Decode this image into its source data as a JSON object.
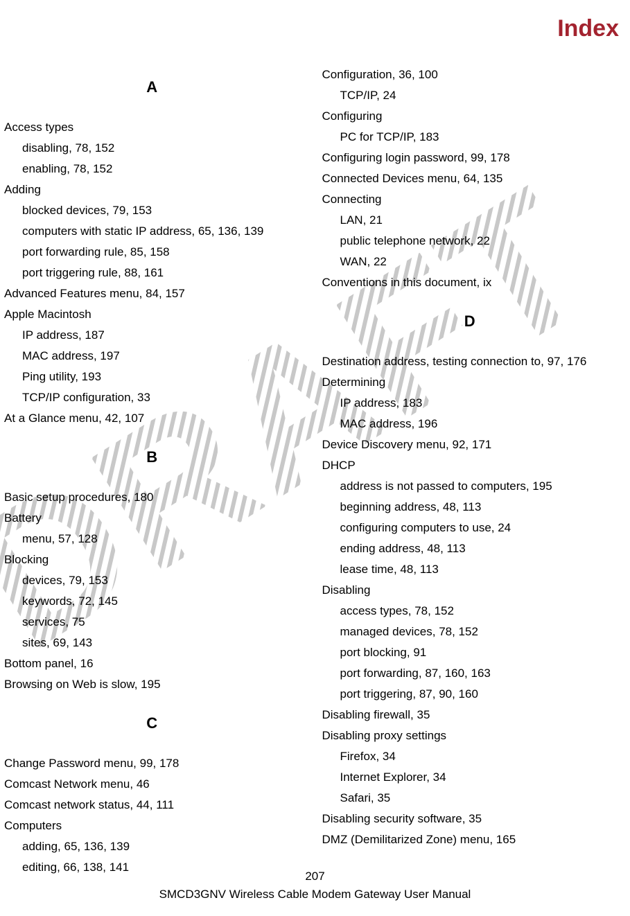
{
  "colors": {
    "title": "#a3232f",
    "text": "#000000",
    "background": "#ffffff",
    "watermark_fill": "#d0d0d0",
    "watermark_pattern_bg": "#ffffff"
  },
  "fonts": {
    "body_family": "Arial, Helvetica, sans-serif",
    "body_size_pt": 13,
    "title_size_pt": 26,
    "section_head_size_pt": 17,
    "section_head_weight": "900"
  },
  "watermark_text": "DRAFT",
  "page_title": "Index",
  "footer": {
    "page_number": "207",
    "manual_title": "SMCD3GNV Wireless Cable Modem Gateway User Manual"
  },
  "left_column": [
    {
      "type": "head",
      "text": "A"
    },
    {
      "type": "entry",
      "text": "Access types"
    },
    {
      "type": "sub",
      "text": "disabling, 78, 152"
    },
    {
      "type": "sub",
      "text": "enabling, 78, 152"
    },
    {
      "type": "entry",
      "text": "Adding"
    },
    {
      "type": "sub",
      "text": "blocked devices, 79, 153"
    },
    {
      "type": "sub",
      "text": "computers with static IP address, 65, 136, 139"
    },
    {
      "type": "sub",
      "text": "port forwarding rule, 85, 158"
    },
    {
      "type": "sub",
      "text": "port triggering rule, 88, 161"
    },
    {
      "type": "entry",
      "text": "Advanced Features menu, 84, 157"
    },
    {
      "type": "entry",
      "text": "Apple Macintosh"
    },
    {
      "type": "sub",
      "text": "IP address, 187"
    },
    {
      "type": "sub",
      "text": "MAC address, 197"
    },
    {
      "type": "sub",
      "text": "Ping utility, 193"
    },
    {
      "type": "sub",
      "text": "TCP/IP configuration, 33"
    },
    {
      "type": "entry",
      "text": "At a Glance menu, 42, 107"
    },
    {
      "type": "head",
      "text": "B"
    },
    {
      "type": "entry",
      "text": "Basic setup procedures, 180"
    },
    {
      "type": "entry",
      "text": "Battery"
    },
    {
      "type": "sub",
      "text": "menu, 57, 128"
    },
    {
      "type": "entry",
      "text": "Blocking"
    },
    {
      "type": "sub",
      "text": "devices, 79, 153"
    },
    {
      "type": "sub",
      "text": "keywords, 72, 145"
    },
    {
      "type": "sub",
      "text": "services, 75"
    },
    {
      "type": "sub",
      "text": "sites, 69, 143"
    },
    {
      "type": "entry",
      "text": "Bottom panel, 16"
    },
    {
      "type": "entry",
      "text": "Browsing on Web is slow, 195"
    },
    {
      "type": "head",
      "text": "C"
    },
    {
      "type": "entry",
      "text": "Change Password menu, 99, 178"
    },
    {
      "type": "entry",
      "text": "Comcast Network menu, 46"
    },
    {
      "type": "entry",
      "text": "Comcast network status, 44, 111"
    },
    {
      "type": "entry",
      "text": "Computers"
    },
    {
      "type": "sub",
      "text": "adding, 65, 136, 139"
    },
    {
      "type": "sub",
      "text": "editing, 66, 138, 141"
    }
  ],
  "right_column": [
    {
      "type": "entry",
      "text": "Configuration, 36, 100",
      "leading_space": true
    },
    {
      "type": "sub",
      "text": "TCP/IP, 24"
    },
    {
      "type": "entry",
      "text": "Configuring"
    },
    {
      "type": "sub",
      "text": "PC for TCP/IP, 183"
    },
    {
      "type": "entry",
      "text": "Configuring login password, 99, 178"
    },
    {
      "type": "entry",
      "text": "Connected Devices menu, 64, 135"
    },
    {
      "type": "entry",
      "text": "Connecting"
    },
    {
      "type": "sub",
      "text": "LAN, 21"
    },
    {
      "type": "sub",
      "text": "public telephone network, 22"
    },
    {
      "type": "sub",
      "text": "WAN, 22"
    },
    {
      "type": "entry",
      "text": "Conventions in this document, ix"
    },
    {
      "type": "head",
      "text": "D"
    },
    {
      "type": "entry",
      "text": "Destination address, testing connection to, 97, 176"
    },
    {
      "type": "entry",
      "text": "Determining"
    },
    {
      "type": "sub",
      "text": "IP address, 183"
    },
    {
      "type": "sub",
      "text": "MAC address, 196"
    },
    {
      "type": "entry",
      "text": "Device Discovery menu, 92, 171"
    },
    {
      "type": "entry",
      "text": "DHCP"
    },
    {
      "type": "sub",
      "text": "address is not passed to computers, 195"
    },
    {
      "type": "sub",
      "text": "beginning address, 48, 113"
    },
    {
      "type": "sub",
      "text": "configuring computers to use, 24"
    },
    {
      "type": "sub",
      "text": "ending address, 48, 113"
    },
    {
      "type": "sub",
      "text": "lease time, 48, 113"
    },
    {
      "type": "entry",
      "text": "Disabling"
    },
    {
      "type": "sub",
      "text": "access types, 78, 152"
    },
    {
      "type": "sub",
      "text": "managed devices, 78, 152"
    },
    {
      "type": "sub",
      "text": "port blocking, 91"
    },
    {
      "type": "sub",
      "text": "port forwarding, 87, 160, 163"
    },
    {
      "type": "sub",
      "text": "port triggering, 87, 90, 160"
    },
    {
      "type": "entry",
      "text": "Disabling firewall, 35"
    },
    {
      "type": "entry",
      "text": "Disabling proxy settings"
    },
    {
      "type": "sub",
      "text": "Firefox, 34"
    },
    {
      "type": "sub",
      "text": "Internet Explorer, 34"
    },
    {
      "type": "sub",
      "text": "Safari, 35"
    },
    {
      "type": "entry",
      "text": "Disabling security software, 35"
    },
    {
      "type": "entry",
      "text": "DMZ (Demilitarized Zone) menu, 165"
    }
  ]
}
